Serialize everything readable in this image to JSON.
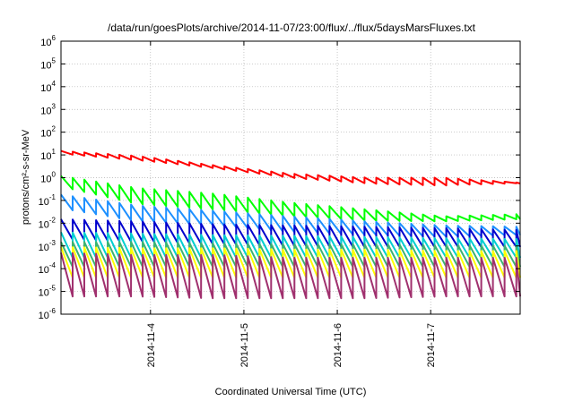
{
  "chart_data": {
    "type": "line",
    "title": "/data/run/goesPlots/archive/2014-11-07/23:00/flux/../flux/5daysMarsFluxes.txt",
    "xlabel": "Coordinated Universal Time (UTC)",
    "ylabel": "protons/cm²-s-sr-MeV",
    "y_scale": "log",
    "ylim": [
      1e-06,
      1000000.0
    ],
    "y_ticks": [
      {
        "base": "10",
        "exp": "-6"
      },
      {
        "base": "10",
        "exp": "-5"
      },
      {
        "base": "10",
        "exp": "-4"
      },
      {
        "base": "10",
        "exp": "-3"
      },
      {
        "base": "10",
        "exp": "-2"
      },
      {
        "base": "10",
        "exp": "-1"
      },
      {
        "base": "10",
        "exp": "0"
      },
      {
        "base": "10",
        "exp": "1"
      },
      {
        "base": "10",
        "exp": "2"
      },
      {
        "base": "10",
        "exp": "3"
      },
      {
        "base": "10",
        "exp": "4"
      },
      {
        "base": "10",
        "exp": "5"
      },
      {
        "base": "10",
        "exp": "6"
      }
    ],
    "x_start": "2014-11-03 01:00",
    "x_end": "2014-11-07 23:00",
    "x_ticks": [
      "2014-11-4",
      "2014-11-5",
      "2014-11-6",
      "2014-11-7"
    ],
    "grid": true,
    "sawtooth_period_hours": 3,
    "series": [
      {
        "color": "#ff0000",
        "peak": [
          15,
          9,
          3.5,
          1.5,
          1,
          1.0,
          0.6
        ],
        "trough": [
          8,
          3.5,
          1.7,
          0.6,
          0.3,
          0.2,
          0.5
        ],
        "sawtooth": false
      },
      {
        "color": "#00ff00",
        "peak": [
          1.2,
          0.35,
          0.2,
          0.08,
          0.04,
          0.02,
          0.025
        ],
        "trough": [
          0.4,
          0.07,
          0.04,
          0.02,
          0.013,
          0.012,
          0.015
        ],
        "sawtooth": true
      },
      {
        "color": "#1e90ff",
        "peak": [
          0.18,
          0.06,
          0.035,
          0.02,
          0.012,
          0.008,
          0.007
        ],
        "trough": [
          0.045,
          0.012,
          0.008,
          0.004,
          0.003,
          0.0025,
          0.003
        ],
        "sawtooth": true
      },
      {
        "color": "#0000cd",
        "peak": [
          0.015,
          0.012,
          0.009,
          0.008,
          0.007,
          0.006,
          0.005
        ],
        "trough": [
          0.002,
          0.0015,
          0.0012,
          0.001,
          0.0009,
          0.0009,
          0.0009
        ],
        "sawtooth": true
      },
      {
        "color": "#00ced1",
        "peak": [
          0.004,
          0.0035,
          0.003,
          0.0028,
          0.0025,
          0.0022,
          0.002
        ],
        "trough": [
          0.0003,
          0.0003,
          0.0003,
          0.0003,
          0.0003,
          0.0003,
          0.0003
        ],
        "sawtooth": true
      },
      {
        "color": "#3cb371",
        "peak": [
          0.0015,
          0.0015,
          0.0013,
          0.0012,
          0.0012,
          0.0011,
          0.001
        ],
        "trough": [
          0.00012,
          0.00012,
          0.00012,
          0.00012,
          0.00012,
          0.00012,
          0.00012
        ],
        "sawtooth": true
      },
      {
        "color": "#ffff00",
        "peak": [
          0.0009,
          0.0008,
          0.0008,
          0.0007,
          0.0007,
          0.0006,
          0.0006
        ],
        "trough": [
          4e-05,
          4e-05,
          4e-05,
          4e-05,
          4e-05,
          4e-05,
          4e-05
        ],
        "sawtooth": true
      },
      {
        "color": "#a0306e",
        "peak": [
          0.0005,
          0.0004,
          0.0004,
          0.0003,
          0.0003,
          0.0003,
          0.0003
        ],
        "trough": [
          6e-06,
          6e-06,
          5e-06,
          5e-06,
          5e-06,
          6e-06,
          6e-06
        ],
        "sawtooth": true
      }
    ]
  }
}
